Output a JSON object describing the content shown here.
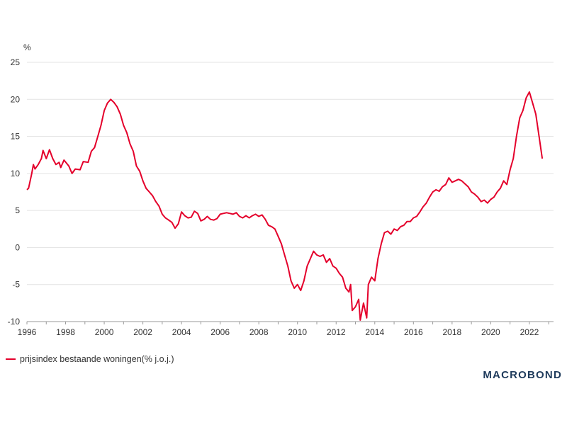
{
  "chart_data": {
    "type": "line",
    "unit": "%",
    "xlim": [
      "1996-01",
      "2023-04"
    ],
    "ylim": [
      -10,
      25
    ],
    "yticks": [
      25,
      20,
      15,
      10,
      5,
      0,
      -5,
      -10
    ],
    "ytick_labels": [
      "25",
      "20",
      "15",
      "10",
      "5",
      "0",
      "-5",
      "-10"
    ],
    "xticks": [
      "1996",
      "1998",
      "2000",
      "2002",
      "2004",
      "2006",
      "2008",
      "2010",
      "2012",
      "2014",
      "2016",
      "2018",
      "2020",
      "2022"
    ],
    "grid": true,
    "legend_position": "bottom-left",
    "series": [
      {
        "name": "prijsindex bestaande woningen(% j.o.j.)",
        "color": "#e4002b",
        "points": [
          [
            "1996-01",
            7.8
          ],
          [
            "1996-02",
            8.0
          ],
          [
            "1996-04",
            10.0
          ],
          [
            "1996-05",
            11.2
          ],
          [
            "1996-06",
            10.6
          ],
          [
            "1996-08",
            11.2
          ],
          [
            "1996-10",
            12.0
          ],
          [
            "1996-11",
            13.1
          ],
          [
            "1997-01",
            12.0
          ],
          [
            "1997-03",
            13.2
          ],
          [
            "1997-05",
            12.0
          ],
          [
            "1997-07",
            11.2
          ],
          [
            "1997-09",
            11.5
          ],
          [
            "1997-10",
            10.8
          ],
          [
            "1997-12",
            11.8
          ],
          [
            "1998-03",
            11.0
          ],
          [
            "1998-05",
            10.0
          ],
          [
            "1998-07",
            10.6
          ],
          [
            "1998-10",
            10.5
          ],
          [
            "1998-12",
            11.6
          ],
          [
            "1999-03",
            11.5
          ],
          [
            "1999-05",
            13.0
          ],
          [
            "1999-07",
            13.5
          ],
          [
            "1999-09",
            15.0
          ],
          [
            "1999-11",
            16.5
          ],
          [
            "2000-01",
            18.5
          ],
          [
            "2000-03",
            19.5
          ],
          [
            "2000-05",
            20.0
          ],
          [
            "2000-07",
            19.6
          ],
          [
            "2000-09",
            19.0
          ],
          [
            "2000-11",
            18.0
          ],
          [
            "2001-01",
            16.5
          ],
          [
            "2001-03",
            15.5
          ],
          [
            "2001-05",
            14.0
          ],
          [
            "2001-07",
            13.0
          ],
          [
            "2001-09",
            11.0
          ],
          [
            "2001-11",
            10.3
          ],
          [
            "2002-01",
            9.0
          ],
          [
            "2002-03",
            8.0
          ],
          [
            "2002-05",
            7.5
          ],
          [
            "2002-07",
            7.0
          ],
          [
            "2002-09",
            6.2
          ],
          [
            "2002-11",
            5.6
          ],
          [
            "2003-01",
            4.5
          ],
          [
            "2003-03",
            4.0
          ],
          [
            "2003-05",
            3.7
          ],
          [
            "2003-07",
            3.4
          ],
          [
            "2003-09",
            2.6
          ],
          [
            "2003-11",
            3.2
          ],
          [
            "2004-01",
            4.8
          ],
          [
            "2004-03",
            4.3
          ],
          [
            "2004-05",
            4.0
          ],
          [
            "2004-07",
            4.1
          ],
          [
            "2004-09",
            4.9
          ],
          [
            "2004-11",
            4.6
          ],
          [
            "2005-01",
            3.6
          ],
          [
            "2005-03",
            3.8
          ],
          [
            "2005-05",
            4.2
          ],
          [
            "2005-07",
            3.8
          ],
          [
            "2005-09",
            3.7
          ],
          [
            "2005-11",
            3.9
          ],
          [
            "2006-01",
            4.5
          ],
          [
            "2006-03",
            4.6
          ],
          [
            "2006-05",
            4.7
          ],
          [
            "2006-07",
            4.6
          ],
          [
            "2006-09",
            4.5
          ],
          [
            "2006-11",
            4.7
          ],
          [
            "2007-01",
            4.2
          ],
          [
            "2007-03",
            4.0
          ],
          [
            "2007-05",
            4.3
          ],
          [
            "2007-07",
            4.0
          ],
          [
            "2007-09",
            4.3
          ],
          [
            "2007-11",
            4.5
          ],
          [
            "2008-01",
            4.2
          ],
          [
            "2008-03",
            4.4
          ],
          [
            "2008-05",
            3.8
          ],
          [
            "2008-07",
            3.0
          ],
          [
            "2008-09",
            2.8
          ],
          [
            "2008-11",
            2.5
          ],
          [
            "2009-01",
            1.5
          ],
          [
            "2009-03",
            0.5
          ],
          [
            "2009-05",
            -1.0
          ],
          [
            "2009-07",
            -2.5
          ],
          [
            "2009-09",
            -4.5
          ],
          [
            "2009-11",
            -5.5
          ],
          [
            "2010-01",
            -5.0
          ],
          [
            "2010-03",
            -5.8
          ],
          [
            "2010-05",
            -4.5
          ],
          [
            "2010-07",
            -2.5
          ],
          [
            "2010-09",
            -1.5
          ],
          [
            "2010-11",
            -0.5
          ],
          [
            "2011-01",
            -1.0
          ],
          [
            "2011-03",
            -1.2
          ],
          [
            "2011-05",
            -1.0
          ],
          [
            "2011-07",
            -2.0
          ],
          [
            "2011-09",
            -1.5
          ],
          [
            "2011-11",
            -2.5
          ],
          [
            "2012-01",
            -2.8
          ],
          [
            "2012-03",
            -3.5
          ],
          [
            "2012-05",
            -4.0
          ],
          [
            "2012-07",
            -5.5
          ],
          [
            "2012-09",
            -6.0
          ],
          [
            "2012-10",
            -5.0
          ],
          [
            "2012-11",
            -8.5
          ],
          [
            "2013-01",
            -8.0
          ],
          [
            "2013-03",
            -7.0
          ],
          [
            "2013-04",
            -9.8
          ],
          [
            "2013-06",
            -7.5
          ],
          [
            "2013-08",
            -9.5
          ],
          [
            "2013-09",
            -5.0
          ],
          [
            "2013-11",
            -4.0
          ],
          [
            "2014-01",
            -4.5
          ],
          [
            "2014-03",
            -1.5
          ],
          [
            "2014-05",
            0.5
          ],
          [
            "2014-07",
            2.0
          ],
          [
            "2014-09",
            2.2
          ],
          [
            "2014-11",
            1.8
          ],
          [
            "2015-01",
            2.5
          ],
          [
            "2015-03",
            2.3
          ],
          [
            "2015-05",
            2.8
          ],
          [
            "2015-07",
            3.0
          ],
          [
            "2015-09",
            3.5
          ],
          [
            "2015-11",
            3.5
          ],
          [
            "2016-01",
            4.0
          ],
          [
            "2016-03",
            4.2
          ],
          [
            "2016-05",
            4.8
          ],
          [
            "2016-07",
            5.5
          ],
          [
            "2016-09",
            6.0
          ],
          [
            "2016-11",
            6.8
          ],
          [
            "2017-01",
            7.5
          ],
          [
            "2017-03",
            7.8
          ],
          [
            "2017-05",
            7.6
          ],
          [
            "2017-07",
            8.2
          ],
          [
            "2017-09",
            8.5
          ],
          [
            "2017-11",
            9.4
          ],
          [
            "2018-01",
            8.8
          ],
          [
            "2018-03",
            9.0
          ],
          [
            "2018-05",
            9.2
          ],
          [
            "2018-07",
            9.0
          ],
          [
            "2018-09",
            8.6
          ],
          [
            "2018-11",
            8.2
          ],
          [
            "2019-01",
            7.5
          ],
          [
            "2019-03",
            7.2
          ],
          [
            "2019-05",
            6.8
          ],
          [
            "2019-07",
            6.2
          ],
          [
            "2019-09",
            6.4
          ],
          [
            "2019-11",
            6.0
          ],
          [
            "2020-01",
            6.5
          ],
          [
            "2020-03",
            6.8
          ],
          [
            "2020-05",
            7.5
          ],
          [
            "2020-07",
            8.0
          ],
          [
            "2020-09",
            9.0
          ],
          [
            "2020-11",
            8.5
          ],
          [
            "2021-01",
            10.5
          ],
          [
            "2021-03",
            12.0
          ],
          [
            "2021-05",
            15.0
          ],
          [
            "2021-07",
            17.5
          ],
          [
            "2021-09",
            18.5
          ],
          [
            "2021-11",
            20.2
          ],
          [
            "2022-01",
            21.0
          ],
          [
            "2022-03",
            19.5
          ],
          [
            "2022-05",
            18.0
          ],
          [
            "2022-07",
            15.0
          ],
          [
            "2022-09",
            12.0
          ]
        ]
      }
    ]
  },
  "brand": {
    "text": "MACROBOND"
  }
}
